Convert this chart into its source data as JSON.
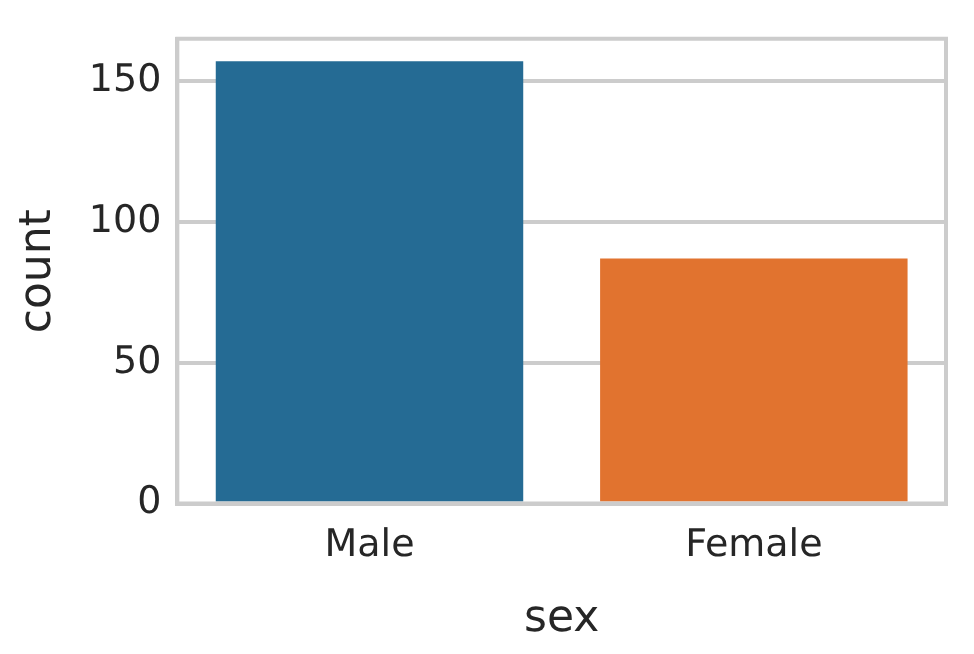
{
  "chart_data": {
    "type": "bar",
    "xlabel": "sex",
    "ylabel": "count",
    "categories": [
      "Male",
      "Female"
    ],
    "values": [
      157,
      87
    ],
    "colors": [
      "#256b94",
      "#e1732f"
    ],
    "ylim": [
      0,
      165
    ],
    "yticks": [
      0,
      50,
      100,
      150
    ],
    "grid": "y"
  }
}
